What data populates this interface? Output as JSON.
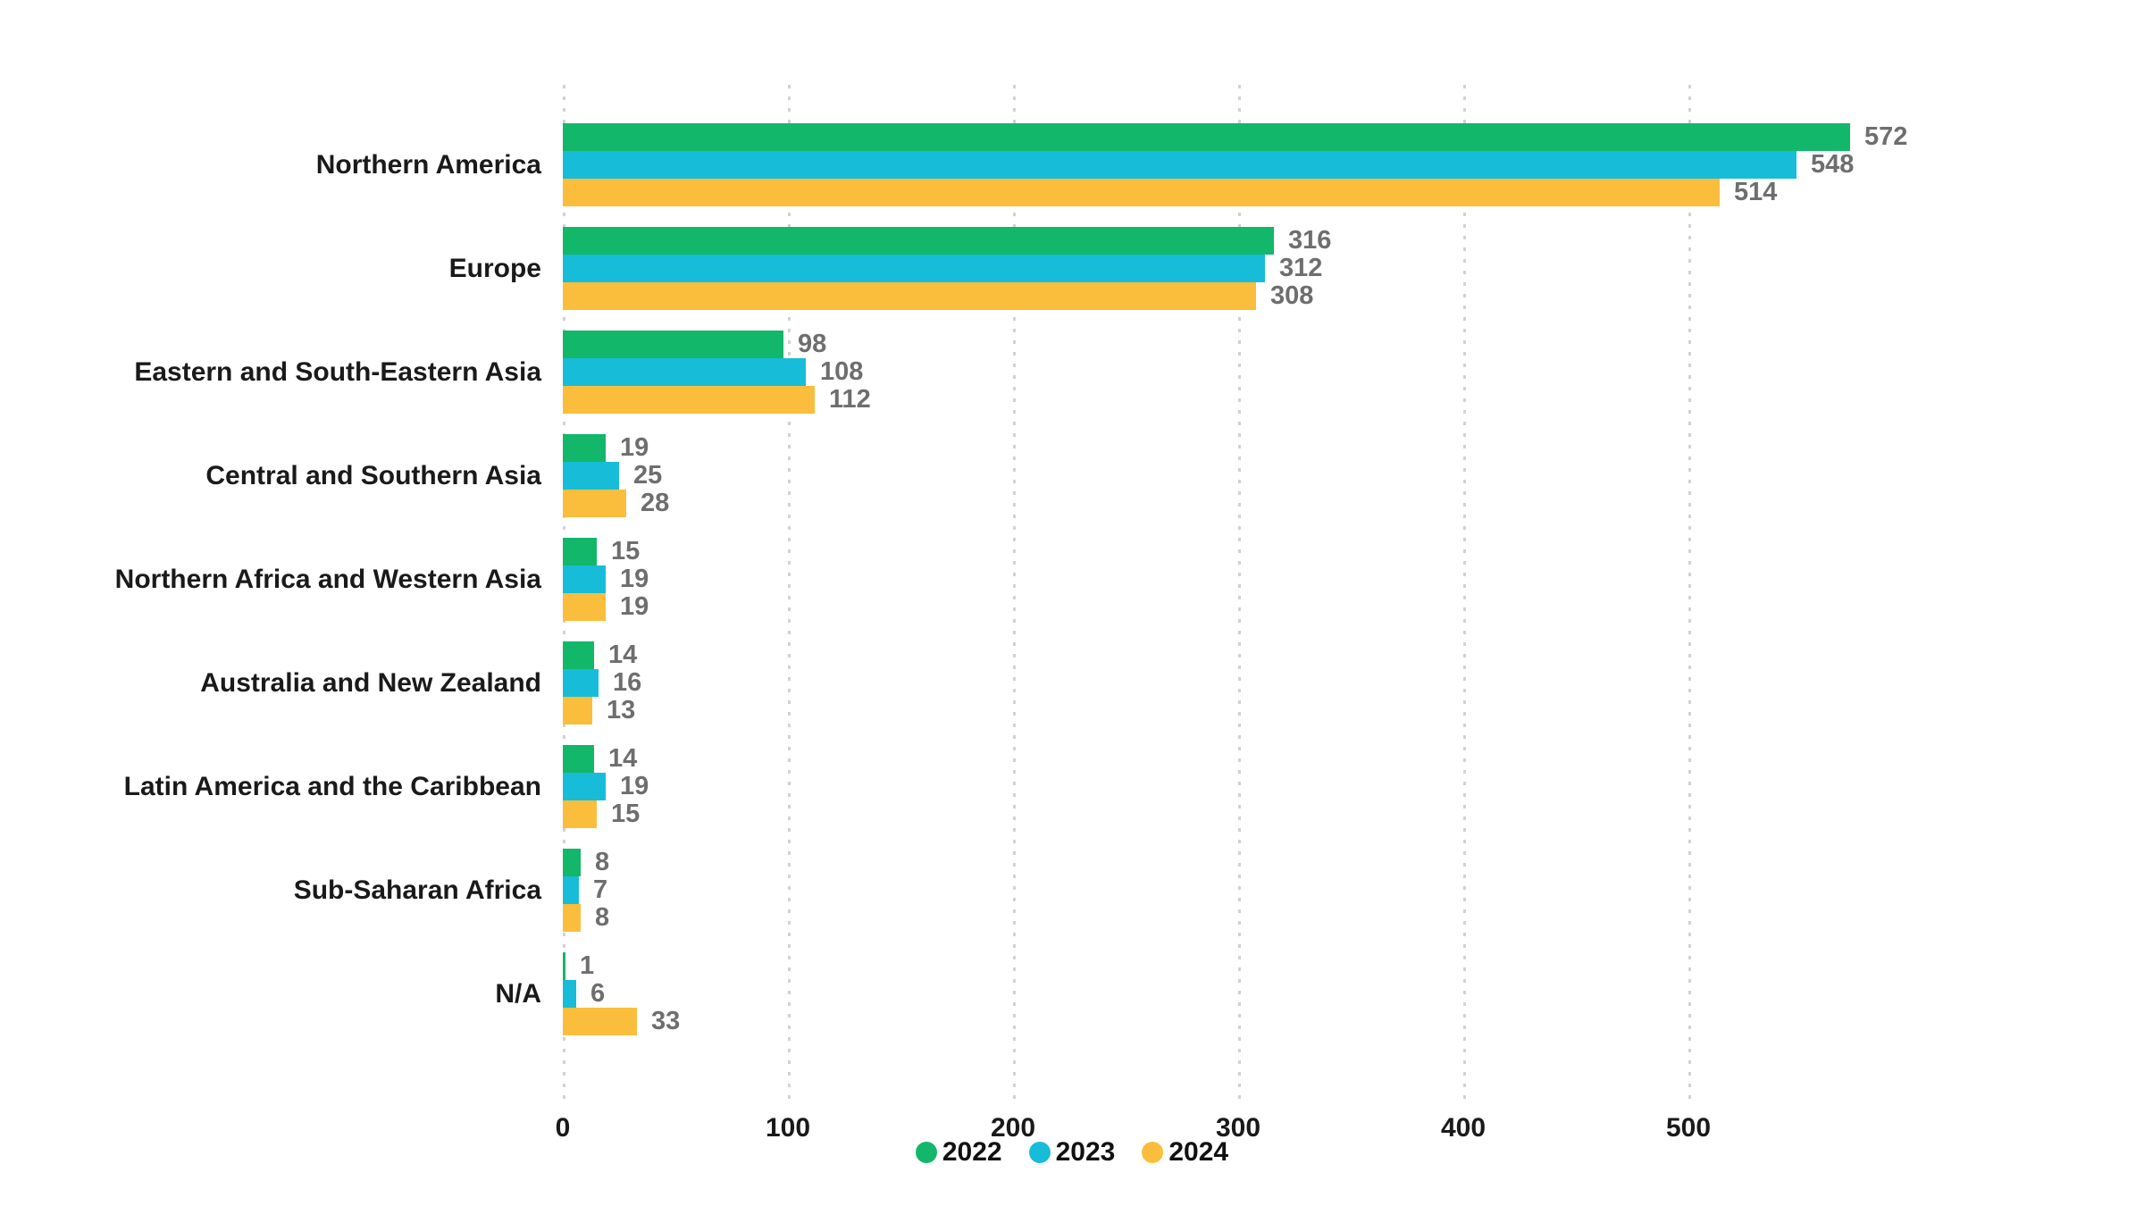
{
  "chart_data": {
    "type": "bar",
    "orientation": "horizontal",
    "title": "",
    "xlabel": "",
    "ylabel": "",
    "categories": [
      "Northern America",
      "Europe",
      "Eastern and South-Eastern Asia",
      "Central and Southern Asia",
      "Northern Africa and Western Asia",
      "Australia and New Zealand",
      "Latin America and the Caribbean",
      "Sub-Saharan Africa",
      "N/A"
    ],
    "series": [
      {
        "name": "2022",
        "color": "#12b76a",
        "values": [
          572,
          316,
          98,
          19,
          15,
          14,
          14,
          8,
          1
        ]
      },
      {
        "name": "2023",
        "color": "#17bdd8",
        "values": [
          548,
          312,
          108,
          25,
          19,
          16,
          19,
          7,
          6
        ]
      },
      {
        "name": "2024",
        "color": "#fbbd3c",
        "values": [
          514,
          308,
          112,
          28,
          19,
          13,
          15,
          8,
          33
        ]
      }
    ],
    "x_ticks": [
      "0",
      "100",
      "200",
      "300",
      "400",
      "500"
    ],
    "x_tick_values": [
      0,
      100,
      200,
      300,
      400,
      500
    ],
    "xlim": [
      0,
      600
    ],
    "grid": "vertical dotted gridlines at each tick",
    "legend_position": "bottom-center",
    "value_labels": "shown in gray at the end of every bar"
  },
  "styles": {
    "background": "#ffffff",
    "value_label_color": "#6e6e6e",
    "category_label_color": "#1a1a1a",
    "tick_label_color": "#1a1a1a",
    "gridline_color": "#d2d2d2"
  }
}
